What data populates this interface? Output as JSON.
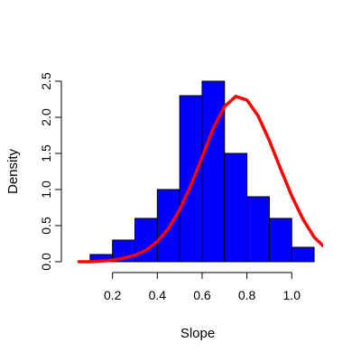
{
  "chart_data": {
    "type": "bar",
    "title": "",
    "xlabel": "Slope",
    "ylabel": "Density",
    "xlim": [
      0.02,
      1.14
    ],
    "ylim": [
      0,
      2.5
    ],
    "x_ticks": [
      0.2,
      0.4,
      0.6,
      0.8,
      1.0
    ],
    "x_tick_labels": [
      "0.2",
      "0.4",
      "0.6",
      "0.8",
      "1.0"
    ],
    "y_ticks": [
      0.0,
      0.5,
      1.0,
      1.5,
      2.0,
      2.5
    ],
    "y_tick_labels": [
      "0.0",
      "0.5",
      "1.0",
      "1.5",
      "2.0",
      "2.5"
    ],
    "histogram": {
      "name": "",
      "color": "#0000ff",
      "bins": [
        {
          "start": 0.1,
          "end": 0.2,
          "density": 0.1
        },
        {
          "start": 0.2,
          "end": 0.3,
          "density": 0.3
        },
        {
          "start": 0.3,
          "end": 0.4,
          "density": 0.6
        },
        {
          "start": 0.4,
          "end": 0.5,
          "density": 1.0
        },
        {
          "start": 0.5,
          "end": 0.6,
          "density": 2.3
        },
        {
          "start": 0.6,
          "end": 0.7,
          "density": 2.5
        },
        {
          "start": 0.7,
          "end": 0.8,
          "density": 1.5
        },
        {
          "start": 0.8,
          "end": 0.9,
          "density": 0.9
        },
        {
          "start": 0.9,
          "end": 1.0,
          "density": 0.6
        },
        {
          "start": 1.0,
          "end": 1.1,
          "density": 0.2
        }
      ]
    },
    "curve": {
      "name": "",
      "type": "line",
      "color": "#ff0000",
      "x": [
        0.05,
        0.1,
        0.15,
        0.2,
        0.25,
        0.3,
        0.35,
        0.4,
        0.45,
        0.5,
        0.55,
        0.6,
        0.65,
        0.7,
        0.75,
        0.8,
        0.85,
        0.9,
        0.95,
        1.0,
        1.05,
        1.1,
        1.14
      ],
      "y": [
        0.0,
        0.0,
        0.01,
        0.02,
        0.05,
        0.09,
        0.16,
        0.28,
        0.46,
        0.72,
        1.06,
        1.45,
        1.85,
        2.15,
        2.29,
        2.24,
        2.02,
        1.68,
        1.29,
        0.91,
        0.59,
        0.34,
        0.22
      ]
    },
    "grid": false,
    "legend": "none"
  }
}
